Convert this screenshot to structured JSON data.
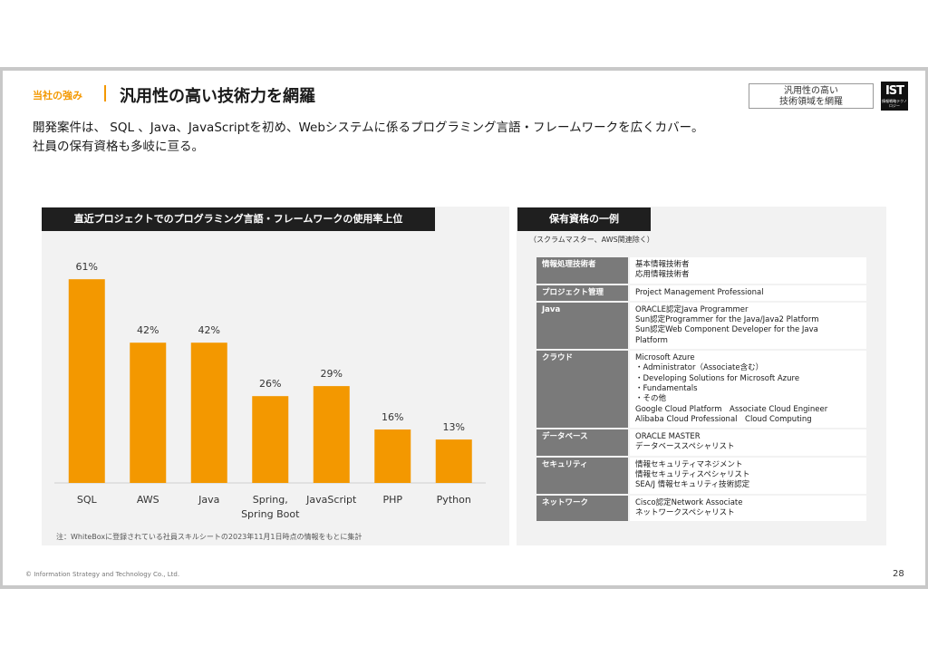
{
  "header": {
    "section_tag": "当社の強み",
    "title": "汎用性の高い技術力を網羅",
    "badge_line1": "汎用性の高い",
    "badge_line2": "技術領域を網羅",
    "logo_text": "IST",
    "logo_subtext": "情報戦略テクノロジー"
  },
  "lead": {
    "line1": "開発案件は、 SQL 、Java、JavaScriptを初め、Webシステムに係るプログラミング言語・フレームワークを広くカバー。",
    "line2": "社員の保有資格も多岐に亘る。"
  },
  "left_panel": {
    "heading": "直近プロジェクトでのプログラミング言語・フレームワークの使用率上位",
    "note": "注：WhiteBoxに登録されている社員スキルシートの2023年11月1日時点の情報をもとに集計"
  },
  "chart_data": {
    "type": "bar",
    "categories": [
      "SQL",
      "AWS",
      "Java",
      "Spring,\nSpring Boot",
      "JavaScript",
      "PHP",
      "Python"
    ],
    "values": [
      61,
      42,
      42,
      26,
      29,
      16,
      13
    ],
    "labels": [
      "61%",
      "42%",
      "42%",
      "26%",
      "29%",
      "16%",
      "13%"
    ],
    "unit": "%",
    "ylim": [
      0,
      70
    ],
    "bar_color": "#f39800",
    "grid": false
  },
  "right_panel": {
    "heading": "保有資格の一例",
    "subheading": "（スクラムマスター、AWS関連除く）",
    "rows": [
      {
        "category": "情報処理技術者",
        "details": [
          "基本情報技術者",
          "応用情報技術者"
        ]
      },
      {
        "category": "プロジェクト管理",
        "details": [
          "Project Management Professional"
        ]
      },
      {
        "category": "Java",
        "details": [
          "ORACLE認定Java Programmer",
          "Sun認定Programmer for the Java/Java2 Platform",
          "Sun認定Web Component Developer for the Java",
          "Platform"
        ]
      },
      {
        "category": "クラウド",
        "details": [
          "Microsoft Azure",
          "・Administrator（Associate含む）",
          "・Developing Solutions for Microsoft Azure",
          "・Fundamentals",
          "・その他",
          "Google Cloud Platform　Associate Cloud Engineer",
          "Alibaba Cloud Professional　Cloud Computing"
        ]
      },
      {
        "category": "データベース",
        "details": [
          "ORACLE MASTER",
          "データベーススペシャリスト"
        ]
      },
      {
        "category": "セキュリティ",
        "details": [
          "情報セキュリティマネジメント",
          "情報セキュリティスペシャリスト",
          "SEA/J 情報セキュリティ技術認定"
        ]
      },
      {
        "category": "ネットワーク",
        "details": [
          "Cisco認定Network Associate",
          "ネットワークスペシャリスト"
        ]
      }
    ]
  },
  "footer": {
    "copyright": "© Information Strategy and Technology Co., Ltd.",
    "page_number": "28"
  },
  "colors": {
    "accent": "#f39800",
    "panel_bg": "#f2f2f2",
    "heading_bg": "#1f1f1f",
    "category_bg": "#7a7a7a"
  }
}
